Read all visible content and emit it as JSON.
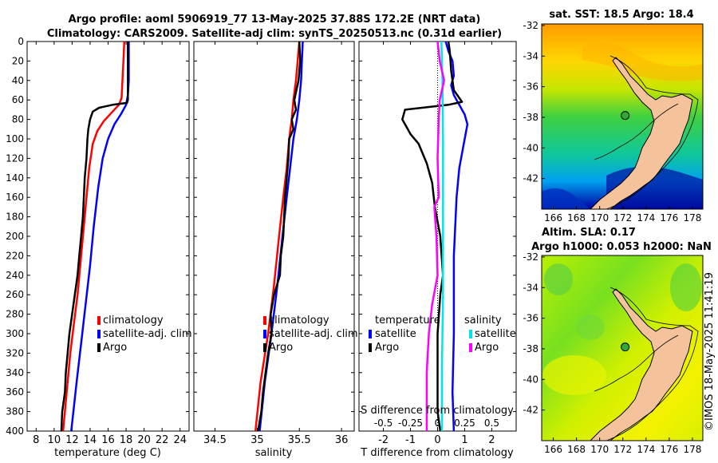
{
  "title": {
    "line1": "Argo profile: aoml 5906919_77 13-May-2025 37.88S 172.2E (NRT data)",
    "line2": "Climatology: CARS2009. Satellite-adj clim: synTS_20250513.nc (0.31d earlier)"
  },
  "watermark": "©IMOS 18-May-2025 11:41:19",
  "colors": {
    "clim": "#ff0000",
    "sat": "#0000ff",
    "argo": "#000000",
    "sal_sat": "#00e5e5",
    "sal_argo": "#ff00ff",
    "land": "#f4c39b"
  },
  "chart_data": [
    {
      "type": "line",
      "title": "",
      "xlabel": "temperature (deg C)",
      "ylabel": "",
      "xlim": [
        7,
        25
      ],
      "ylim": [
        400,
        0
      ],
      "xticks": [
        8,
        10,
        12,
        14,
        16,
        18,
        20,
        22,
        24
      ],
      "yticks": [
        0,
        20,
        40,
        60,
        80,
        100,
        120,
        140,
        160,
        180,
        200,
        220,
        240,
        260,
        280,
        300,
        320,
        340,
        360,
        380,
        400
      ],
      "legend": {
        "placement": "lower-right",
        "labels": [
          "climatology",
          "satellite-adj. clim",
          "Argo"
        ]
      },
      "series": [
        {
          "name": "climatology",
          "color": "#ff0000",
          "points": [
            [
              17.8,
              0
            ],
            [
              17.7,
              20
            ],
            [
              17.6,
              40
            ],
            [
              17.5,
              58
            ],
            [
              17.2,
              65
            ],
            [
              16.5,
              72
            ],
            [
              15.5,
              82
            ],
            [
              14.8,
              92
            ],
            [
              14.3,
              105
            ],
            [
              13.9,
              130
            ],
            [
              13.6,
              160
            ],
            [
              13.3,
              190
            ],
            [
              13.0,
              220
            ],
            [
              12.6,
              260
            ],
            [
              12.2,
              290
            ],
            [
              11.8,
              320
            ],
            [
              11.4,
              360
            ],
            [
              11.0,
              400
            ]
          ]
        },
        {
          "name": "satellite-adj. clim",
          "color": "#0000ff",
          "points": [
            [
              18.3,
              0
            ],
            [
              18.3,
              20
            ],
            [
              18.3,
              40
            ],
            [
              18.2,
              55
            ],
            [
              18.0,
              65
            ],
            [
              17.4,
              75
            ],
            [
              16.7,
              85
            ],
            [
              16.0,
              100
            ],
            [
              15.4,
              120
            ],
            [
              14.9,
              150
            ],
            [
              14.4,
              190
            ],
            [
              14.0,
              230
            ],
            [
              13.5,
              270
            ],
            [
              13.0,
              310
            ],
            [
              12.5,
              350
            ],
            [
              11.9,
              400
            ]
          ]
        },
        {
          "name": "Argo",
          "color": "#000000",
          "points": [
            [
              18.2,
              0
            ],
            [
              18.2,
              20
            ],
            [
              18.2,
              40
            ],
            [
              18.2,
              60
            ],
            [
              18.1,
              63
            ],
            [
              16.5,
              65
            ],
            [
              15.0,
              68
            ],
            [
              14.3,
              72
            ],
            [
              14.0,
              80
            ],
            [
              13.8,
              90
            ],
            [
              13.7,
              100
            ],
            [
              13.6,
              120
            ],
            [
              13.4,
              140
            ],
            [
              13.3,
              160
            ],
            [
              13.2,
              180
            ],
            [
              13.0,
              200
            ],
            [
              12.8,
              220
            ],
            [
              12.6,
              240
            ],
            [
              12.3,
              260
            ],
            [
              12.0,
              280
            ],
            [
              11.7,
              300
            ],
            [
              11.5,
              320
            ],
            [
              11.3,
              340
            ],
            [
              11.2,
              360
            ],
            [
              10.9,
              380
            ],
            [
              10.8,
              400
            ]
          ]
        }
      ]
    },
    {
      "type": "line",
      "title": "",
      "xlabel": "salinity",
      "ylabel": "",
      "xlim": [
        34.25,
        36.15
      ],
      "ylim": [
        400,
        0
      ],
      "xticks": [
        34.5,
        35,
        35.5,
        36
      ],
      "yticks": [],
      "legend": {
        "placement": "lower-right",
        "labels": [
          "climatology",
          "satellite-adj. clim",
          "Argo"
        ]
      },
      "series": [
        {
          "name": "climatology",
          "color": "#ff0000",
          "points": [
            [
              35.5,
              0
            ],
            [
              35.48,
              20
            ],
            [
              35.46,
              40
            ],
            [
              35.43,
              60
            ],
            [
              35.41,
              80
            ],
            [
              35.38,
              100
            ],
            [
              35.35,
              130
            ],
            [
              35.31,
              160
            ],
            [
              35.26,
              200
            ],
            [
              35.2,
              250
            ],
            [
              35.13,
              300
            ],
            [
              35.04,
              350
            ],
            [
              34.98,
              400
            ]
          ]
        },
        {
          "name": "satellite-adj. clim",
          "color": "#0000ff",
          "points": [
            [
              35.54,
              0
            ],
            [
              35.53,
              20
            ],
            [
              35.52,
              40
            ],
            [
              35.5,
              60
            ],
            [
              35.47,
              80
            ],
            [
              35.43,
              100
            ],
            [
              35.39,
              130
            ],
            [
              35.35,
              160
            ],
            [
              35.3,
              200
            ],
            [
              35.24,
              250
            ],
            [
              35.17,
              300
            ],
            [
              35.09,
              350
            ],
            [
              35.03,
              400
            ]
          ]
        },
        {
          "name": "Argo",
          "color": "#000000",
          "points": [
            [
              35.5,
              0
            ],
            [
              35.51,
              20
            ],
            [
              35.49,
              40
            ],
            [
              35.44,
              60
            ],
            [
              35.46,
              70
            ],
            [
              35.41,
              80
            ],
            [
              35.43,
              90
            ],
            [
              35.38,
              100
            ],
            [
              35.37,
              120
            ],
            [
              35.35,
              140
            ],
            [
              35.33,
              160
            ],
            [
              35.32,
              180
            ],
            [
              35.31,
              200
            ],
            [
              35.28,
              220
            ],
            [
              35.27,
              240
            ],
            [
              35.2,
              260
            ],
            [
              35.16,
              280
            ],
            [
              35.17,
              300
            ],
            [
              35.13,
              320
            ],
            [
              35.1,
              340
            ],
            [
              35.07,
              360
            ],
            [
              35.05,
              380
            ],
            [
              35.01,
              400
            ]
          ]
        }
      ]
    },
    {
      "type": "line",
      "title": "",
      "xlabel": "T difference from climatology",
      "xlabel_top": "S difference from climatology",
      "xlim": [
        -2.9,
        2.9
      ],
      "ylim": [
        400,
        0
      ],
      "xticks": [
        -2,
        -1,
        0,
        1,
        2
      ],
      "top_ticks": [
        "-0.5",
        "-0.25",
        "0",
        "0.25",
        "0.5"
      ],
      "legend": {
        "placement": "lower",
        "temperature": {
          "header": "temperature",
          "labels": [
            "satellite",
            "Argo"
          ]
        },
        "salinity": {
          "header": "salinity",
          "labels": [
            "satellite",
            "Argo"
          ]
        }
      },
      "series": [
        {
          "name": "temperature satellite",
          "color": "#0000ff",
          "points": [
            [
              0.3,
              0
            ],
            [
              0.4,
              10
            ],
            [
              0.55,
              20
            ],
            [
              0.6,
              35
            ],
            [
              0.5,
              45
            ],
            [
              0.6,
              55
            ],
            [
              0.8,
              65
            ],
            [
              1.0,
              75
            ],
            [
              1.1,
              85
            ],
            [
              1.0,
              100
            ],
            [
              0.8,
              130
            ],
            [
              0.7,
              160
            ],
            [
              0.6,
              220
            ],
            [
              0.6,
              300
            ],
            [
              0.55,
              360
            ],
            [
              0.6,
              400
            ]
          ]
        },
        {
          "name": "temperature Argo",
          "color": "#000000",
          "points": [
            [
              0.4,
              0
            ],
            [
              0.45,
              10
            ],
            [
              0.5,
              30
            ],
            [
              0.6,
              50
            ],
            [
              0.9,
              62
            ],
            [
              0.4,
              65
            ],
            [
              -1.2,
              70
            ],
            [
              -1.3,
              80
            ],
            [
              -1.0,
              95
            ],
            [
              -0.7,
              105
            ],
            [
              -0.4,
              125
            ],
            [
              -0.2,
              145
            ],
            [
              -0.1,
              170
            ],
            [
              0.1,
              200
            ],
            [
              0.2,
              240
            ],
            [
              0.1,
              260
            ],
            [
              0.0,
              300
            ],
            [
              0.0,
              340
            ],
            [
              0.0,
              380
            ],
            [
              0.1,
              400
            ]
          ]
        },
        {
          "name": "salinity satellite",
          "color": "#00e5e5",
          "points": [
            [
              0.035,
              0
            ],
            [
              0.045,
              40
            ],
            [
              0.05,
              100
            ],
            [
              0.05,
              180
            ],
            [
              0.05,
              260
            ],
            [
              0.04,
              340
            ],
            [
              0.04,
              400
            ]
          ]
        },
        {
          "name": "salinity Argo",
          "color": "#ff00ff",
          "points": [
            [
              0.0,
              0
            ],
            [
              0.02,
              20
            ],
            [
              0.06,
              40
            ],
            [
              0.02,
              60
            ],
            [
              0.01,
              80
            ],
            [
              0.0,
              120
            ],
            [
              0.01,
              160
            ],
            [
              -0.03,
              170
            ],
            [
              -0.01,
              200
            ],
            [
              0.0,
              240
            ],
            [
              -0.05,
              270
            ],
            [
              -0.08,
              300
            ],
            [
              -0.1,
              340
            ],
            [
              -0.1,
              400
            ]
          ]
        }
      ]
    }
  ],
  "maps": [
    {
      "title": "sat. SST: 18.5 Argo: 18.4",
      "title_line2": "",
      "xticks": [
        "166",
        "168",
        "170",
        "172",
        "174",
        "176",
        "178"
      ],
      "yticks": [
        "-32",
        "-34",
        "-36",
        "-38",
        "-40",
        "-42"
      ],
      "profile_marker": [
        172.2,
        -37.88
      ]
    },
    {
      "title": "Altim. SLA: 0.17",
      "title_line2": "Argo h1000: 0.053 h2000: NaN",
      "xticks": [
        "166",
        "168",
        "170",
        "172",
        "174",
        "176",
        "178"
      ],
      "yticks": [
        "-32",
        "-34",
        "-36",
        "-38",
        "-40",
        "-42"
      ],
      "profile_marker": [
        172.2,
        -37.88
      ]
    }
  ]
}
